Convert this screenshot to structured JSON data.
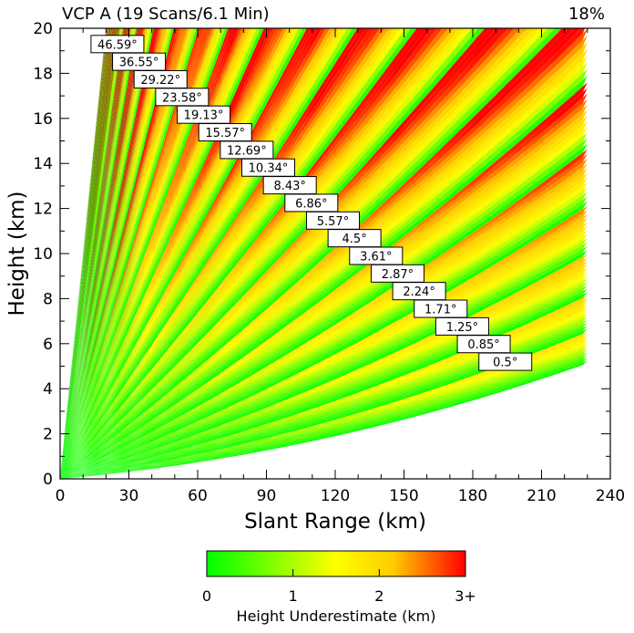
{
  "header": {
    "title": "VCP A (19 Scans/6.1 Min)",
    "percent": "18%"
  },
  "chart_data": {
    "type": "heatmap",
    "title": "VCP A (19 Scans/6.1 Min)",
    "xlabel": "Slant Range (km)",
    "ylabel": "Height (km)",
    "xlim": [
      0,
      240
    ],
    "ylim": [
      0,
      20
    ],
    "xticks": [
      0,
      30,
      60,
      90,
      120,
      150,
      180,
      210,
      240
    ],
    "yticks": [
      0,
      2,
      4,
      6,
      8,
      10,
      12,
      14,
      16,
      18,
      20
    ],
    "max_range_km": 230,
    "elevation_angles_deg": [
      "46.59°",
      "36.55°",
      "29.22°",
      "23.58°",
      "19.13°",
      "15.57°",
      "12.69°",
      "10.34°",
      "8.43°",
      "6.86°",
      "5.57°",
      "4.5°",
      "3.61°",
      "2.87°",
      "2.24°",
      "1.71°",
      "1.25°",
      "0.85°",
      "0.5°"
    ],
    "elevation_values": [
      46.59,
      36.55,
      29.22,
      23.58,
      19.13,
      15.57,
      12.69,
      10.34,
      8.43,
      6.86,
      5.57,
      4.5,
      3.61,
      2.87,
      2.24,
      1.71,
      1.25,
      0.85,
      0.5
    ],
    "colorbar": {
      "label": "Height Underestimate (km)",
      "ticks": [
        "0",
        "1",
        "2",
        "3+"
      ],
      "tick_values": [
        0,
        1,
        2,
        3
      ],
      "colors": [
        "#00ff00",
        "#ffff00",
        "#ff0000"
      ]
    },
    "grid": false,
    "legend": "none"
  }
}
